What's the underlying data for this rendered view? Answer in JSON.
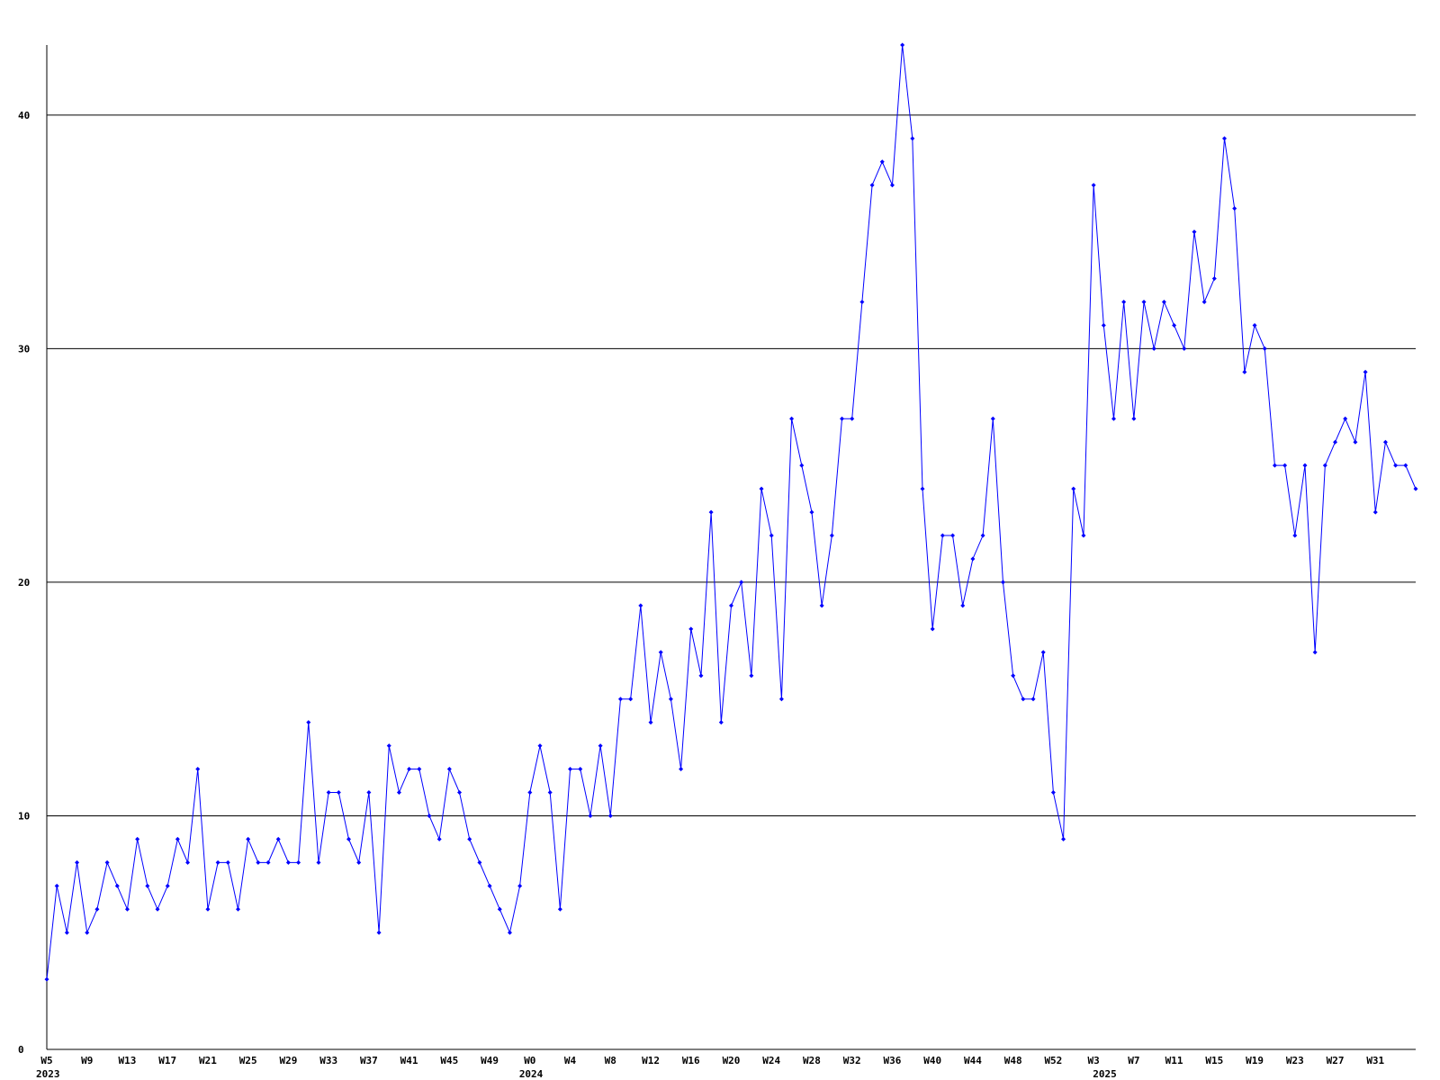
{
  "chart_data": {
    "type": "line",
    "color": "#0000ff",
    "ylim": [
      0,
      43
    ],
    "yticks": [
      0,
      10,
      20,
      30,
      40
    ],
    "grid": true,
    "categories": [
      "W5",
      null,
      null,
      null,
      "W9",
      null,
      null,
      null,
      "W13",
      null,
      null,
      null,
      "W17",
      null,
      null,
      null,
      "W21",
      null,
      null,
      null,
      "W25",
      null,
      null,
      null,
      "W29",
      null,
      null,
      null,
      "W33",
      null,
      null,
      null,
      "W37",
      null,
      null,
      null,
      "W41",
      null,
      null,
      null,
      "W45",
      null,
      null,
      null,
      "W49",
      null,
      null,
      null,
      "W0",
      null,
      null,
      null,
      "W4",
      null,
      null,
      null,
      "W8",
      null,
      null,
      null,
      "W12",
      null,
      null,
      null,
      "W16",
      null,
      null,
      null,
      "W20",
      null,
      null,
      null,
      "W24",
      null,
      null,
      null,
      "W28",
      null,
      null,
      null,
      "W32",
      null,
      null,
      null,
      "W36",
      null,
      null,
      null,
      "W40",
      null,
      null,
      null,
      "W44",
      null,
      null,
      null,
      "W48",
      null,
      null,
      null,
      "W52",
      null,
      null,
      null,
      "W3",
      null,
      null,
      null,
      "W7",
      null,
      null,
      null,
      "W11",
      null,
      null,
      null,
      "W15",
      null,
      null,
      null,
      "W19",
      null,
      null,
      null,
      "W23",
      null,
      null,
      null,
      "W27",
      null,
      null,
      null,
      "W31",
      null,
      null,
      null,
      null
    ],
    "year_labels": [
      "2023",
      null,
      null,
      null,
      null,
      null,
      null,
      null,
      null,
      null,
      null,
      null,
      null,
      null,
      null,
      null,
      null,
      null,
      null,
      null,
      null,
      null,
      null,
      null,
      null,
      null,
      null,
      null,
      null,
      null,
      null,
      null,
      null,
      null,
      null,
      null,
      null,
      null,
      null,
      null,
      null,
      null,
      null,
      null,
      null,
      null,
      null,
      null,
      "2024",
      null,
      null,
      null,
      null,
      null,
      null,
      null,
      null,
      null,
      null,
      null,
      null,
      null,
      null,
      null,
      null,
      null,
      null,
      null,
      null,
      null,
      null,
      null,
      null,
      null,
      null,
      null,
      null,
      null,
      null,
      null,
      null,
      null,
      null,
      null,
      null,
      null,
      null,
      null,
      null,
      null,
      null,
      null,
      null,
      null,
      null,
      null,
      null,
      null,
      null,
      null,
      null,
      null,
      null,
      null,
      null,
      "2025",
      null,
      null,
      null,
      null,
      null,
      null,
      null,
      null,
      null,
      null,
      null,
      null,
      null,
      null,
      null,
      null,
      null,
      null,
      null,
      null,
      null,
      null,
      null,
      null,
      null,
      null,
      null,
      null,
      null,
      null,
      null,
      null,
      null,
      null,
      null
    ],
    "values": [
      3,
      7,
      5,
      8,
      5,
      6,
      8,
      7,
      6,
      9,
      7,
      6,
      7,
      9,
      8,
      12,
      6,
      8,
      8,
      6,
      9,
      8,
      8,
      9,
      8,
      8,
      14,
      8,
      11,
      11,
      9,
      8,
      11,
      5,
      13,
      11,
      12,
      12,
      10,
      9,
      12,
      11,
      9,
      8,
      7,
      6,
      5,
      7,
      11,
      13,
      11,
      6,
      12,
      12,
      10,
      13,
      10,
      15,
      15,
      19,
      14,
      17,
      15,
      12,
      18,
      16,
      23,
      14,
      19,
      20,
      16,
      24,
      22,
      15,
      27,
      25,
      23,
      19,
      22,
      27,
      27,
      32,
      37,
      38,
      37,
      43,
      39,
      24,
      18,
      22,
      22,
      19,
      21,
      22,
      27,
      20,
      16,
      15,
      15,
      17,
      11,
      9,
      24,
      22,
      37,
      31,
      27,
      32,
      27,
      32,
      30,
      32,
      31,
      30,
      35,
      32,
      33,
      39,
      36,
      29,
      31,
      30,
      25,
      25,
      22,
      25,
      17,
      25,
      26,
      27,
      26,
      29,
      23,
      26,
      25,
      25,
      24
    ]
  }
}
